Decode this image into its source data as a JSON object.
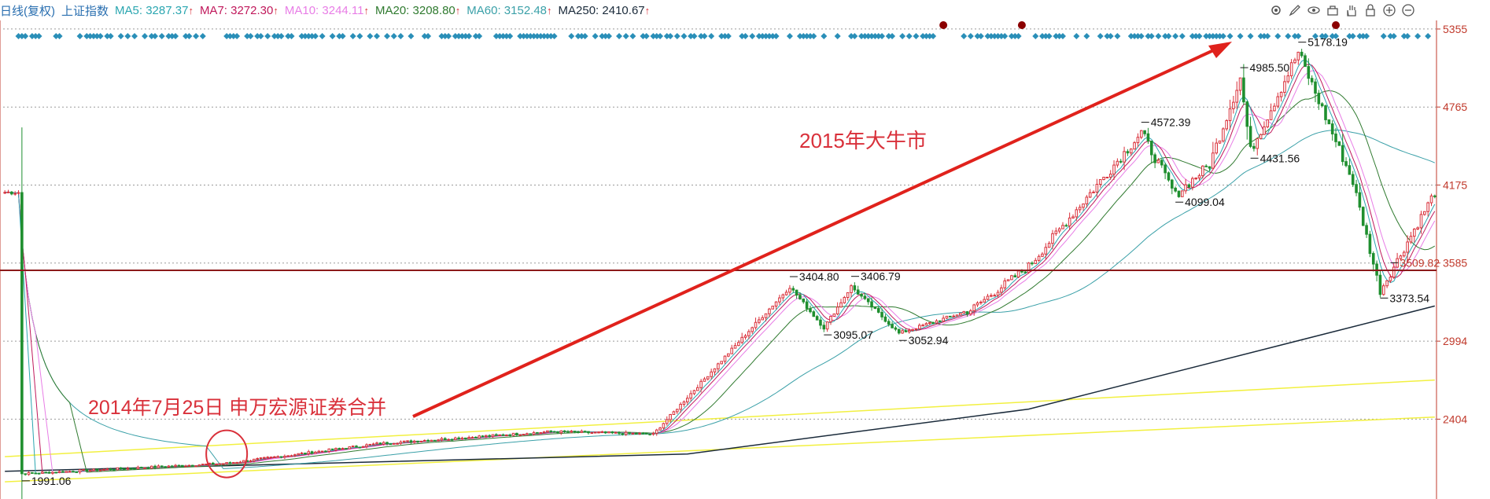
{
  "header": {
    "period": "日线(复权)",
    "index_name": "上证指数",
    "ma": [
      {
        "label": "MA5",
        "value": "3287.37",
        "trend": "↑",
        "color": "#2aa6b0"
      },
      {
        "label": "MA7",
        "value": "3272.30",
        "trend": "↑",
        "color": "#c0185b"
      },
      {
        "label": "MA10",
        "value": "3244.11",
        "trend": "↑",
        "color": "#e87de6"
      },
      {
        "label": "MA20",
        "value": "3208.80",
        "trend": "↑",
        "color": "#2f7a2f"
      },
      {
        "label": "MA60",
        "value": "3152.48",
        "trend": "↑",
        "color": "#3aa0a8"
      },
      {
        "label": "MA250",
        "value": "2410.67",
        "trend": "↑",
        "color": "#1a2a3a"
      }
    ]
  },
  "toolbar": [
    "settings-icon",
    "pen-icon",
    "eye-icon",
    "basket-icon",
    "hand-icon",
    "lock-icon",
    "zoom-in-icon",
    "zoom-out-icon"
  ],
  "chart_data": {
    "type": "candlestick",
    "title": "",
    "y_ticks": [
      5355,
      4765,
      4175,
      3585,
      2994,
      2404
    ],
    "ylim": [
      1800,
      5420
    ],
    "x_points": 420,
    "up_color": "#d9303a",
    "down_color": "#1f8f2f",
    "key_points": [
      {
        "index": 5,
        "price": 1991.06,
        "label": "1991.06"
      },
      {
        "index": 65,
        "price": 2070,
        "label": ""
      },
      {
        "index": 110,
        "price": 2220,
        "label": ""
      },
      {
        "index": 160,
        "price": 2310,
        "label": ""
      },
      {
        "index": 190,
        "price": 2290,
        "label": ""
      },
      {
        "index": 230,
        "price": 3404.8,
        "label": "3404.80"
      },
      {
        "index": 240,
        "price": 3095.07,
        "label": "3095.07"
      },
      {
        "index": 248,
        "price": 3406.79,
        "label": "3406.79"
      },
      {
        "index": 262,
        "price": 3052.94,
        "label": "3052.94"
      },
      {
        "index": 283,
        "price": 3230,
        "label": ""
      },
      {
        "index": 300,
        "price": 3560,
        "label": ""
      },
      {
        "index": 333,
        "price": 4572.39,
        "label": "4572.39"
      },
      {
        "index": 343,
        "price": 4099.04,
        "label": "4099.04"
      },
      {
        "index": 353,
        "price": 4330,
        "label": ""
      },
      {
        "index": 362,
        "price": 4985.5,
        "label": "4985.50"
      },
      {
        "index": 365,
        "price": 4431.56,
        "label": "4431.56"
      },
      {
        "index": 379,
        "price": 5178.19,
        "label": "5178.19"
      },
      {
        "index": 395,
        "price": 4200,
        "label": ""
      },
      {
        "index": 403,
        "price": 3373.54,
        "label": "3373.54"
      },
      {
        "index": 406,
        "price": 3509.82,
        "label": "3509.82"
      },
      {
        "index": 419,
        "price": 4120,
        "label": ""
      }
    ],
    "ma250_points": [
      {
        "index": 0,
        "price": 2010
      },
      {
        "index": 200,
        "price": 2140
      },
      {
        "index": 300,
        "price": 2480
      },
      {
        "index": 419,
        "price": 3260
      }
    ],
    "support_lines": [
      {
        "from": {
          "index": 0,
          "price": 2120
        },
        "to": {
          "index": 419,
          "price": 2700
        },
        "color": "#f2f040"
      },
      {
        "from": {
          "index": 0,
          "price": 1930
        },
        "to": {
          "index": 419,
          "price": 2420
        },
        "color": "#f2f040"
      }
    ],
    "horizontal_line": {
      "price": 3530,
      "color": "#8b1a1a"
    },
    "annotations": [
      {
        "text": "2015年大牛市",
        "color": "#d9303a"
      },
      {
        "text": "2014年7月25日 申万宏源证券合并",
        "color": "#d9303a"
      }
    ],
    "circle_marker": {
      "index": 65,
      "price": 2070,
      "color": "#d9303a"
    },
    "event_dots": [
      {
        "index": 275,
        "color": "#8b0000"
      },
      {
        "index": 298,
        "color": "#8b0000"
      },
      {
        "index": 390,
        "color": "#8b0000"
      }
    ]
  }
}
